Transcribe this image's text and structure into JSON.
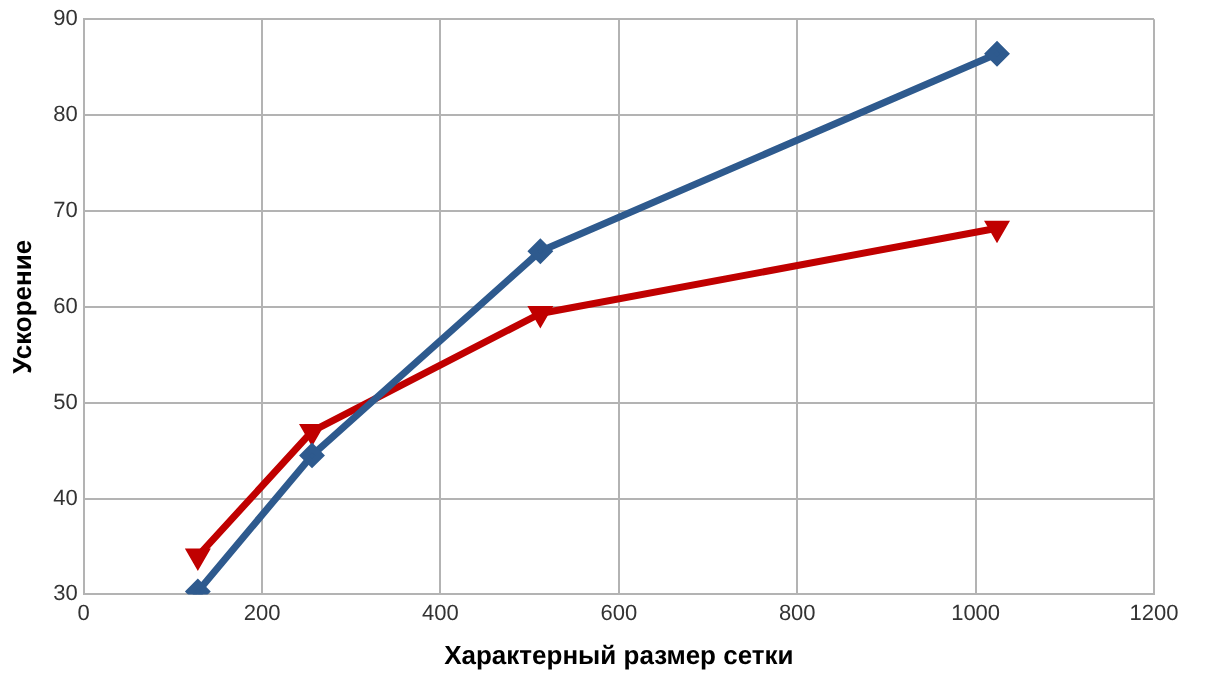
{
  "chart_data": {
    "type": "line",
    "xlabel": "Характерный размер сетки",
    "ylabel": "Ускорение",
    "x": [
      128,
      256,
      512,
      1024
    ],
    "series": [
      {
        "color": "#2e5a8e",
        "values": [
          30.3,
          44.5,
          65.8,
          86.4
        ],
        "marker": "diamond"
      },
      {
        "color": "#c00000",
        "values": [
          34,
          47,
          59.3,
          68.2
        ],
        "marker": "triangle"
      }
    ],
    "xlim": [
      0,
      1200
    ],
    "xticks": [
      0,
      200,
      400,
      600,
      800,
      1000,
      1200
    ],
    "ylim": [
      30,
      90
    ],
    "yticks": [
      30,
      40,
      50,
      60,
      70,
      80,
      90
    ],
    "grid": true,
    "line_style": "solid"
  }
}
